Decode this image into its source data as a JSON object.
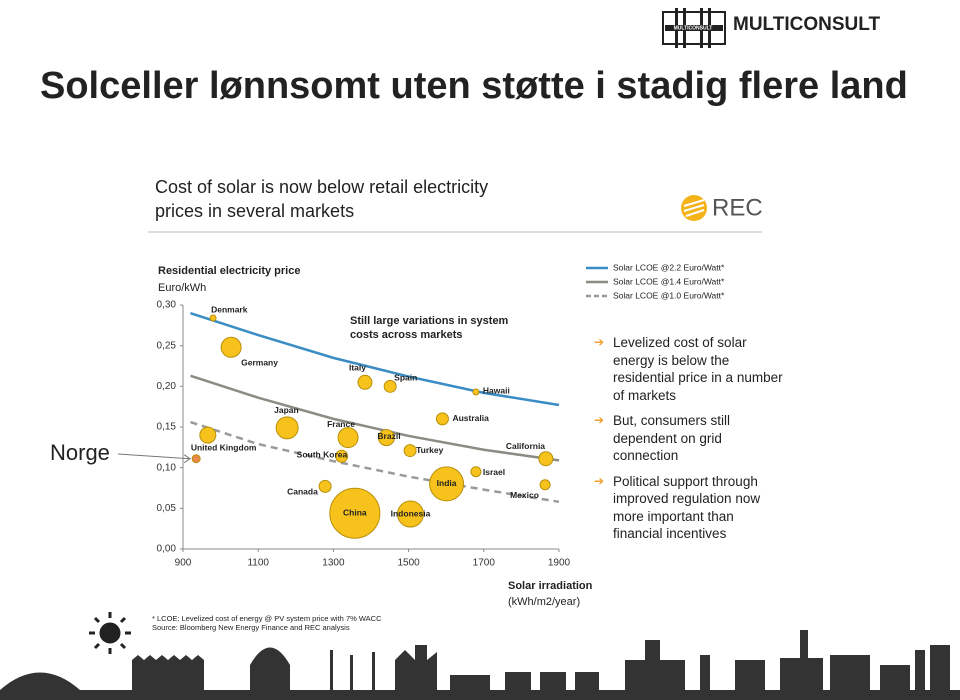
{
  "header": {
    "title": "Solceller lønnsomt uten støtte i stadig flere land",
    "logo": "MULTICONSULT",
    "logo_mark": "MULTICONSULT"
  },
  "panel": {
    "title_lines": [
      "Cost of solar is now below retail electricity",
      "prices in several markets"
    ],
    "logo": "REC"
  },
  "chart_data": {
    "type": "bubble",
    "y_label": "Residential electricity price",
    "y_unit": "Euro/kWh",
    "x_label": "Solar irradiation",
    "x_unit": "(kWh/m2/year)",
    "annotation": [
      "Still large variations in system",
      "costs across markets"
    ],
    "xlim": [
      900,
      1900
    ],
    "xticks": [
      900,
      1100,
      1300,
      1500,
      1700,
      1900
    ],
    "ylim": [
      0,
      0.3
    ],
    "yticks": [
      {
        "value": 0,
        "label": "0,00"
      },
      {
        "value": 0.05,
        "label": "0,05"
      },
      {
        "value": 0.1,
        "label": "0,10"
      },
      {
        "value": 0.15,
        "label": "0,15"
      },
      {
        "value": 0.2,
        "label": "0,20"
      },
      {
        "value": 0.25,
        "label": "0,25"
      },
      {
        "value": 0.3,
        "label": "0,30"
      }
    ],
    "markets": {
      "names": [
        "Denmark",
        "Germany",
        "Italy",
        "Spain",
        "Hawaii",
        "Japan",
        "France",
        "Brazil",
        "Australia",
        "United Kingdom",
        "South Korea",
        "Turkey",
        "California",
        "Norge",
        "Canada",
        "India",
        "Israel",
        "China",
        "Indonesia",
        "Mexico"
      ],
      "x": [
        980,
        1028,
        1384,
        1451,
        1679,
        1177,
        1339,
        1441,
        1590,
        966,
        1322,
        1504,
        1865,
        935,
        1278,
        1601,
        1679,
        1357,
        1505,
        1863
      ],
      "y": [
        0.284,
        0.248,
        0.205,
        0.2,
        0.193,
        0.149,
        0.137,
        0.137,
        0.16,
        0.14,
        0.114,
        0.121,
        0.111,
        0.111,
        0.077,
        0.08,
        0.095,
        0.044,
        0.043,
        0.079
      ],
      "sizes": [
        3,
        10,
        7,
        6,
        3,
        11,
        10,
        8,
        6,
        8,
        6,
        6,
        7,
        4,
        6,
        17,
        5,
        25,
        13,
        5
      ],
      "colors": [
        "#f7c21b",
        "#f7c21b",
        "#f7c21b",
        "#f7c21b",
        "#f7c21b",
        "#f7c21b",
        "#f7c21b",
        "#f7c21b",
        "#f7c21b",
        "#f7c21b",
        "#f7c21b",
        "#f7c21b",
        "#f7c21b",
        "#e8894a",
        "#f7c21b",
        "#f7c21b",
        "#f7c21b",
        "#f7c21b",
        "#f7c21b",
        "#f7c21b"
      ]
    },
    "series": [
      {
        "name": "Solar LCOE @2.2 Euro/Watt*",
        "color": "#3a8cc4",
        "dashed": false,
        "x": [
          920,
          1100,
          1300,
          1500,
          1700,
          1900
        ],
        "values": [
          0.29,
          0.263,
          0.235,
          0.212,
          0.192,
          0.177
        ]
      },
      {
        "name": "Solar LCOE @1.4 Euro/Watt*",
        "color": "#8c8c84",
        "dashed": false,
        "x": [
          920,
          1100,
          1300,
          1500,
          1700,
          1900
        ],
        "values": [
          0.213,
          0.186,
          0.16,
          0.139,
          0.122,
          0.109
        ]
      },
      {
        "name": "Solar LCOE @1.0 Euro/Watt*",
        "color": "#9a9a9a",
        "dashed": true,
        "x": [
          920,
          1100,
          1300,
          1500,
          1700,
          1900
        ],
        "values": [
          0.156,
          0.129,
          0.108,
          0.089,
          0.073,
          0.058
        ]
      }
    ]
  },
  "bullets": [
    "Levelized cost of solar energy is below the residential price in a number of markets",
    "But, consumers still dependent on grid connection",
    "Political support through improved regulation now more important than financial incentives"
  ],
  "footnotes": [
    "* LCOE: Levelized cost of energy @ PV system price with 7% WACC",
    "Source: Bloomberg New Energy Finance and REC analysis"
  ]
}
